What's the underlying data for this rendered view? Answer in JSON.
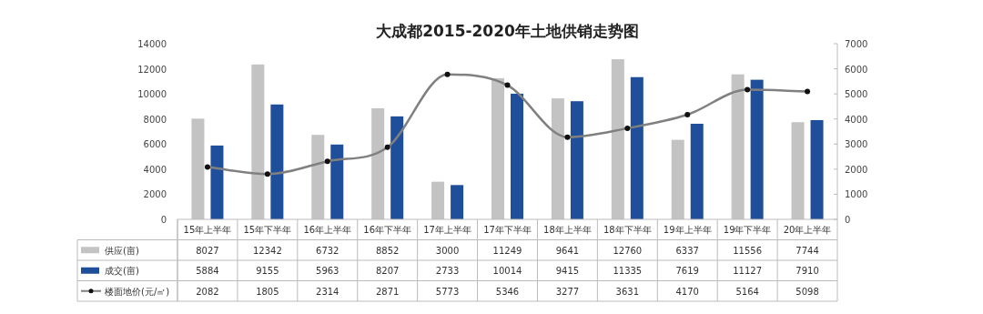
{
  "chart_data": {
    "type": "bar",
    "title": "大成都2015-2020年土地供销走势图",
    "categories": [
      "15年上半年",
      "15年下半年",
      "16年上半年",
      "16年下半年",
      "17年上半年",
      "17年下半年",
      "18年上半年",
      "18年下半年",
      "19年上半年",
      "19年下半年",
      "20年上半年"
    ],
    "series": [
      {
        "name": "供应(亩)",
        "color": "#c3c3c3",
        "values": [
          8027,
          12342,
          6732,
          8852,
          3000,
          11249,
          9641,
          12760,
          6337,
          11556,
          7744
        ]
      },
      {
        "name": "成交(亩)",
        "color": "#1f4e9a",
        "values": [
          5884,
          9155,
          5963,
          8207,
          2733,
          10014,
          9415,
          11335,
          7619,
          11127,
          7910
        ]
      },
      {
        "name": "楼面地价(元/㎡)",
        "color": "#808080",
        "type": "line",
        "axis": "y2",
        "marker": "circle",
        "values": [
          2082,
          1805,
          2314,
          2871,
          5773,
          5346,
          3277,
          3631,
          4170,
          5164,
          5098
        ]
      }
    ],
    "ylim": [
      0,
      14000
    ],
    "yticks": [
      0,
      2000,
      4000,
      6000,
      8000,
      10000,
      12000,
      14000
    ],
    "y2lim": [
      0,
      7000
    ],
    "y2ticks": [
      0,
      1000,
      2000,
      3000,
      4000,
      5000,
      6000,
      7000
    ],
    "data_labels": true,
    "legend": "bottom",
    "grid": false
  }
}
